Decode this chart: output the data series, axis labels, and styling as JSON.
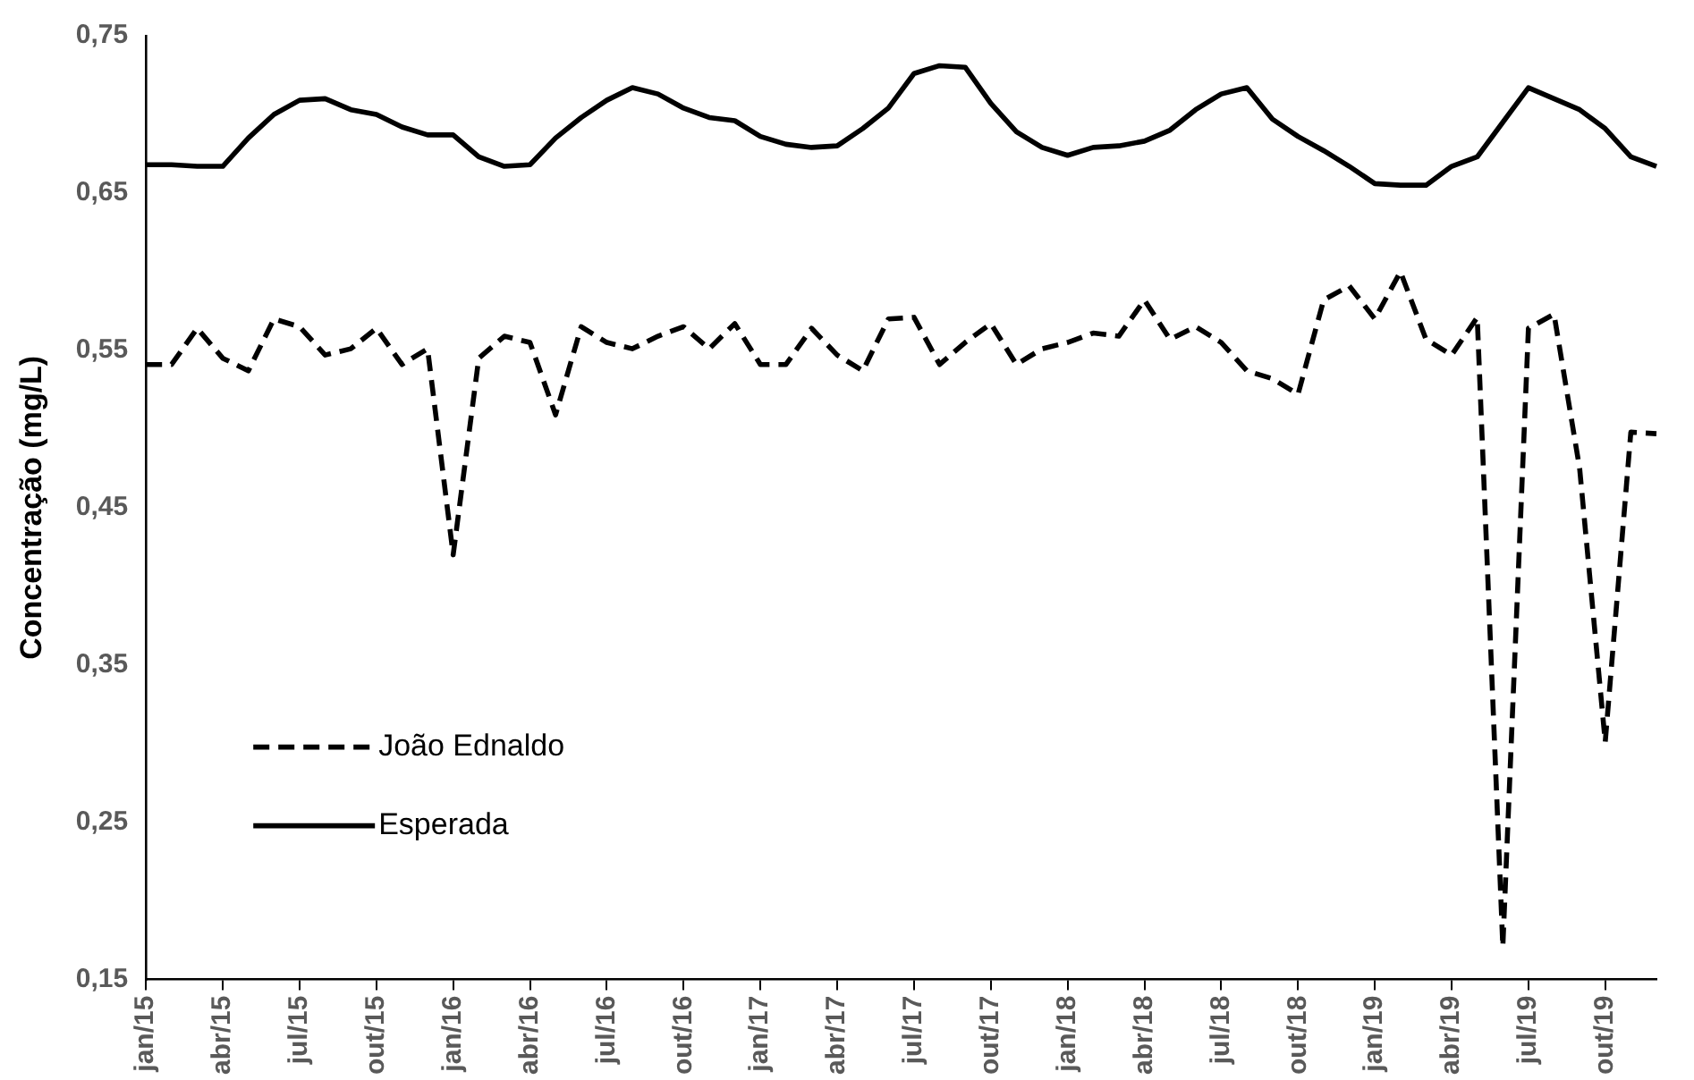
{
  "chart_data": {
    "type": "line",
    "ylabel": "Concentração (mg/L)",
    "categories": [
      "jan/15",
      null,
      null,
      "abr/15",
      null,
      null,
      "jul/15",
      null,
      null,
      "out/15",
      null,
      null,
      "jan/16",
      null,
      null,
      "abr/16",
      null,
      null,
      "jul/16",
      null,
      null,
      "out/16",
      null,
      null,
      "jan/17",
      null,
      null,
      "abr/17",
      null,
      null,
      "jul/17",
      null,
      null,
      "out/17",
      null,
      null,
      "jan/18",
      null,
      null,
      "abr/18",
      null,
      null,
      "jul/18",
      null,
      null,
      "out/18",
      null,
      null,
      "jan/19",
      null,
      null,
      "abr/19",
      null,
      null,
      "jul/19",
      null,
      null,
      "out/19",
      null,
      null
    ],
    "series": [
      {
        "name": "João Ednaldo",
        "color": "#000000",
        "line_style": "dashed",
        "values": [
          0.541,
          0.541,
          0.564,
          0.545,
          0.537,
          0.57,
          0.565,
          0.547,
          0.551,
          0.564,
          0.541,
          0.551,
          0.42,
          0.545,
          0.559,
          0.555,
          0.509,
          0.565,
          0.555,
          0.551,
          0.559,
          0.565,
          0.551,
          0.567,
          0.541,
          0.541,
          0.564,
          0.547,
          0.537,
          0.57,
          0.571,
          0.541,
          0.555,
          0.567,
          0.541,
          0.551,
          0.555,
          0.561,
          0.559,
          0.582,
          0.557,
          0.565,
          0.555,
          0.537,
          0.532,
          0.522,
          0.582,
          0.591,
          0.57,
          0.6,
          0.557,
          0.547,
          0.571,
          0.171,
          0.564,
          0.573,
          0.475,
          0.301,
          0.498,
          0.497
        ]
      },
      {
        "name": "Esperada",
        "color": "#000000",
        "line_style": "solid",
        "values": [
          0.668,
          0.668,
          0.667,
          0.667,
          0.685,
          0.7,
          0.709,
          0.71,
          0.703,
          0.7,
          0.692,
          0.687,
          0.687,
          0.673,
          0.667,
          0.668,
          0.685,
          0.698,
          0.709,
          0.717,
          0.713,
          0.704,
          0.698,
          0.696,
          0.686,
          0.681,
          0.679,
          0.68,
          0.691,
          0.704,
          0.726,
          0.731,
          0.73,
          0.707,
          0.689,
          0.679,
          0.674,
          0.679,
          0.68,
          0.683,
          0.69,
          0.703,
          0.713,
          0.717,
          0.697,
          0.686,
          0.677,
          0.667,
          0.656,
          0.655,
          0.655,
          0.667,
          0.673,
          0.695,
          0.717,
          0.71,
          0.703,
          0.691,
          0.673,
          0.667
        ]
      }
    ],
    "ylim": [
      0.15,
      0.75
    ],
    "yticks": [
      {
        "value": 0.15,
        "label": "0,15"
      },
      {
        "value": 0.25,
        "label": "0,25"
      },
      {
        "value": 0.35,
        "label": "0,35"
      },
      {
        "value": 0.45,
        "label": "0,45"
      },
      {
        "value": 0.55,
        "label": "0,55"
      },
      {
        "value": 0.65,
        "label": "0,65"
      },
      {
        "value": 0.75,
        "label": "0,75"
      }
    ],
    "grid": false,
    "legend": "bottom left",
    "marker": "none"
  }
}
